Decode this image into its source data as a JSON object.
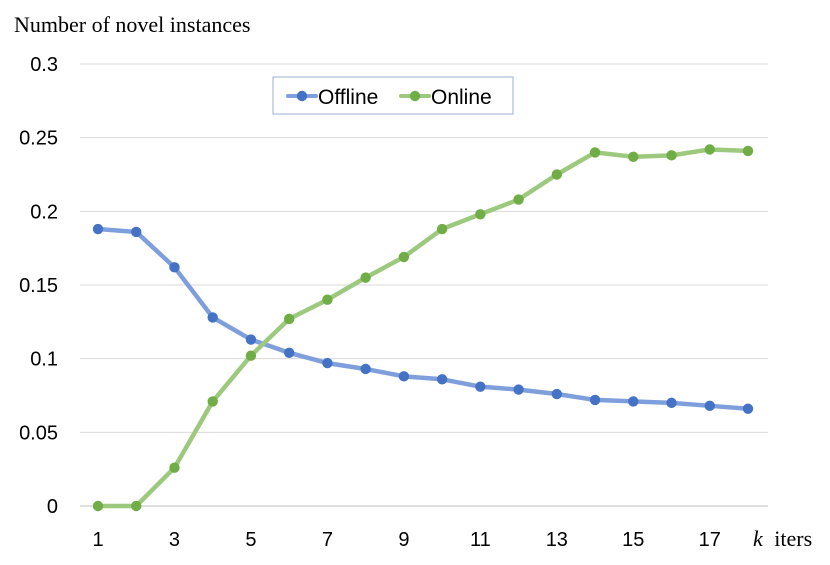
{
  "chart_data": {
    "type": "line",
    "ylabel": "Number of novel instances",
    "xlabel_italic": "k",
    "xlabel_rest": "iters",
    "x": [
      1,
      2,
      3,
      4,
      5,
      6,
      7,
      8,
      9,
      10,
      11,
      12,
      13,
      14,
      15,
      16,
      17,
      18
    ],
    "x_tick_labels": [
      "1",
      "3",
      "5",
      "7",
      "9",
      "11",
      "13",
      "15",
      "17"
    ],
    "y_tick_labels": [
      "0",
      "0.05",
      "0.1",
      "0.15",
      "0.2",
      "0.25",
      "0.3"
    ],
    "ylim": [
      0,
      0.3
    ],
    "grid": true,
    "legend_position": "top-center",
    "series": [
      {
        "name": "Offline",
        "color": "#4472C4",
        "line_color": "#7F9FDC",
        "values": [
          0.188,
          0.186,
          0.162,
          0.128,
          0.113,
          0.104,
          0.097,
          0.093,
          0.088,
          0.086,
          0.081,
          0.079,
          0.076,
          0.072,
          0.071,
          0.07,
          0.068,
          0.066
        ]
      },
      {
        "name": "Online",
        "color": "#70AD47",
        "line_color": "#9DC97E",
        "values": [
          0.0,
          0.0,
          0.026,
          0.071,
          0.102,
          0.127,
          0.14,
          0.155,
          0.169,
          0.188,
          0.198,
          0.208,
          0.225,
          0.24,
          0.237,
          0.238,
          0.242,
          0.241
        ]
      }
    ]
  }
}
